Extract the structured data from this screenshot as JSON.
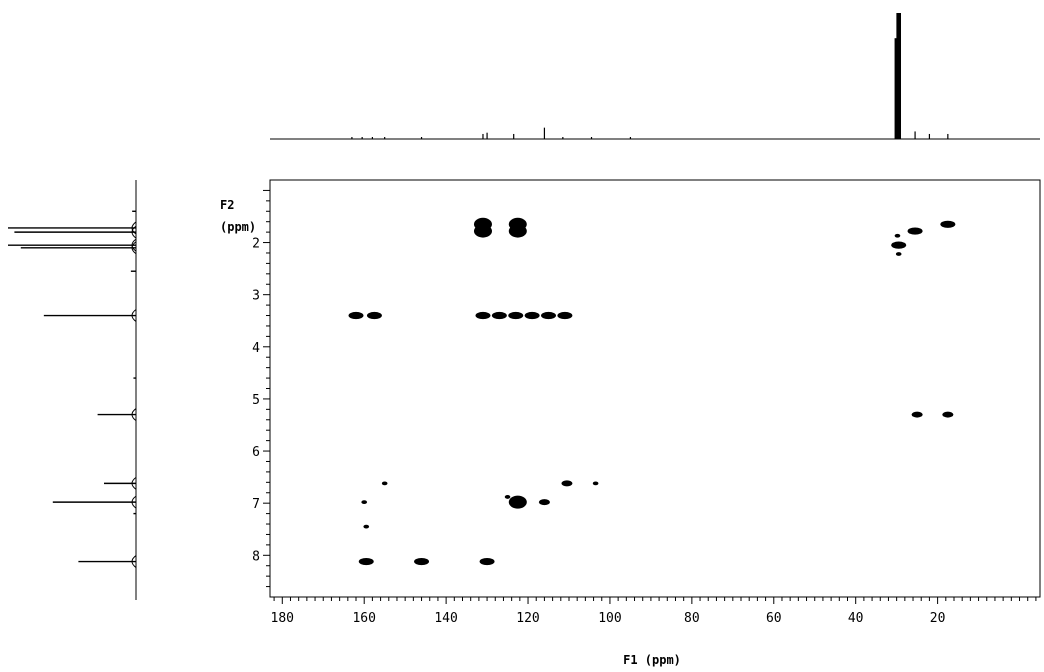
{
  "chart_data": {
    "type": "scatter",
    "subtype": "2D NMR correlation spectrum (HMBC-style contour plot) with 1D projections",
    "x_axis": {
      "label": "F1 (ppm)",
      "range": [
        183,
        -5
      ],
      "reversed": true,
      "ticks": [
        180,
        160,
        140,
        120,
        100,
        80,
        60,
        40,
        20
      ],
      "minor_tick_step": 2
    },
    "y_axis": {
      "label_line1": "F2",
      "label_line2": "(ppm)",
      "range": [
        0.8,
        8.8
      ],
      "reversed": true,
      "ticks": [
        2,
        3,
        4,
        5,
        6,
        7,
        8
      ],
      "minor_tick_step": 0.2
    },
    "grid": false,
    "peaks": [
      {
        "x": 131.0,
        "y": 1.65,
        "size": "large"
      },
      {
        "x": 131.0,
        "y": 1.78,
        "size": "large"
      },
      {
        "x": 122.5,
        "y": 1.65,
        "size": "large"
      },
      {
        "x": 122.5,
        "y": 1.78,
        "size": "large"
      },
      {
        "x": 162.0,
        "y": 3.4,
        "size": "medium"
      },
      {
        "x": 157.5,
        "y": 3.4,
        "size": "medium"
      },
      {
        "x": 131.0,
        "y": 3.4,
        "size": "medium"
      },
      {
        "x": 127.0,
        "y": 3.4,
        "size": "medium"
      },
      {
        "x": 123.0,
        "y": 3.4,
        "size": "medium"
      },
      {
        "x": 119.0,
        "y": 3.4,
        "size": "medium"
      },
      {
        "x": 115.0,
        "y": 3.4,
        "size": "medium"
      },
      {
        "x": 111.0,
        "y": 3.4,
        "size": "medium"
      },
      {
        "x": 25.5,
        "y": 1.78,
        "size": "medium"
      },
      {
        "x": 17.5,
        "y": 1.65,
        "size": "medium"
      },
      {
        "x": 29.5,
        "y": 2.05,
        "size": "medium"
      },
      {
        "x": 29.5,
        "y": 2.22,
        "size": "tiny"
      },
      {
        "x": 29.8,
        "y": 1.87,
        "size": "tiny"
      },
      {
        "x": 25.0,
        "y": 5.3,
        "size": "small"
      },
      {
        "x": 17.5,
        "y": 5.3,
        "size": "small"
      },
      {
        "x": 155.0,
        "y": 6.62,
        "size": "tiny"
      },
      {
        "x": 110.5,
        "y": 6.62,
        "size": "small"
      },
      {
        "x": 103.5,
        "y": 6.62,
        "size": "tiny"
      },
      {
        "x": 160.0,
        "y": 6.98,
        "size": "tiny"
      },
      {
        "x": 159.5,
        "y": 7.45,
        "size": "tiny"
      },
      {
        "x": 125.0,
        "y": 6.88,
        "size": "tiny"
      },
      {
        "x": 122.5,
        "y": 6.98,
        "size": "large"
      },
      {
        "x": 116.0,
        "y": 6.98,
        "size": "small"
      },
      {
        "x": 159.5,
        "y": 8.12,
        "size": "medium"
      },
      {
        "x": 146.0,
        "y": 8.12,
        "size": "medium"
      },
      {
        "x": 130.0,
        "y": 8.12,
        "size": "medium"
      }
    ],
    "top_projection": [
      {
        "x": 29.5,
        "h": 1.0,
        "w": 1.1
      },
      {
        "x": 30.2,
        "h": 0.8,
        "w": 0.6
      },
      {
        "x": 116.0,
        "h": 0.09
      },
      {
        "x": 123.5,
        "h": 0.04
      },
      {
        "x": 130.0,
        "h": 0.05
      },
      {
        "x": 131.0,
        "h": 0.04
      },
      {
        "x": 111.5,
        "h": 0.015
      },
      {
        "x": 104.5,
        "h": 0.015
      },
      {
        "x": 95.0,
        "h": 0.012
      },
      {
        "x": 146.0,
        "h": 0.01
      },
      {
        "x": 155.0,
        "h": 0.012
      },
      {
        "x": 158.0,
        "h": 0.01
      },
      {
        "x": 160.5,
        "h": 0.012
      },
      {
        "x": 163.0,
        "h": 0.01
      },
      {
        "x": 25.5,
        "h": 0.06
      },
      {
        "x": 22.0,
        "h": 0.04
      },
      {
        "x": 17.5,
        "h": 0.04
      }
    ],
    "left_projection": [
      {
        "y": 1.72,
        "h": 1.0
      },
      {
        "y": 1.8,
        "h": 0.95
      },
      {
        "y": 2.05,
        "h": 1.0
      },
      {
        "y": 2.1,
        "h": 0.9
      },
      {
        "y": 3.4,
        "h": 0.72
      },
      {
        "y": 5.3,
        "h": 0.3
      },
      {
        "y": 6.62,
        "h": 0.25
      },
      {
        "y": 6.98,
        "h": 0.65
      },
      {
        "y": 8.12,
        "h": 0.45
      },
      {
        "y": 1.4,
        "h": 0.03
      },
      {
        "y": 2.55,
        "h": 0.04
      },
      {
        "y": 4.6,
        "h": 0.02
      },
      {
        "y": 7.2,
        "h": 0.02
      }
    ]
  }
}
